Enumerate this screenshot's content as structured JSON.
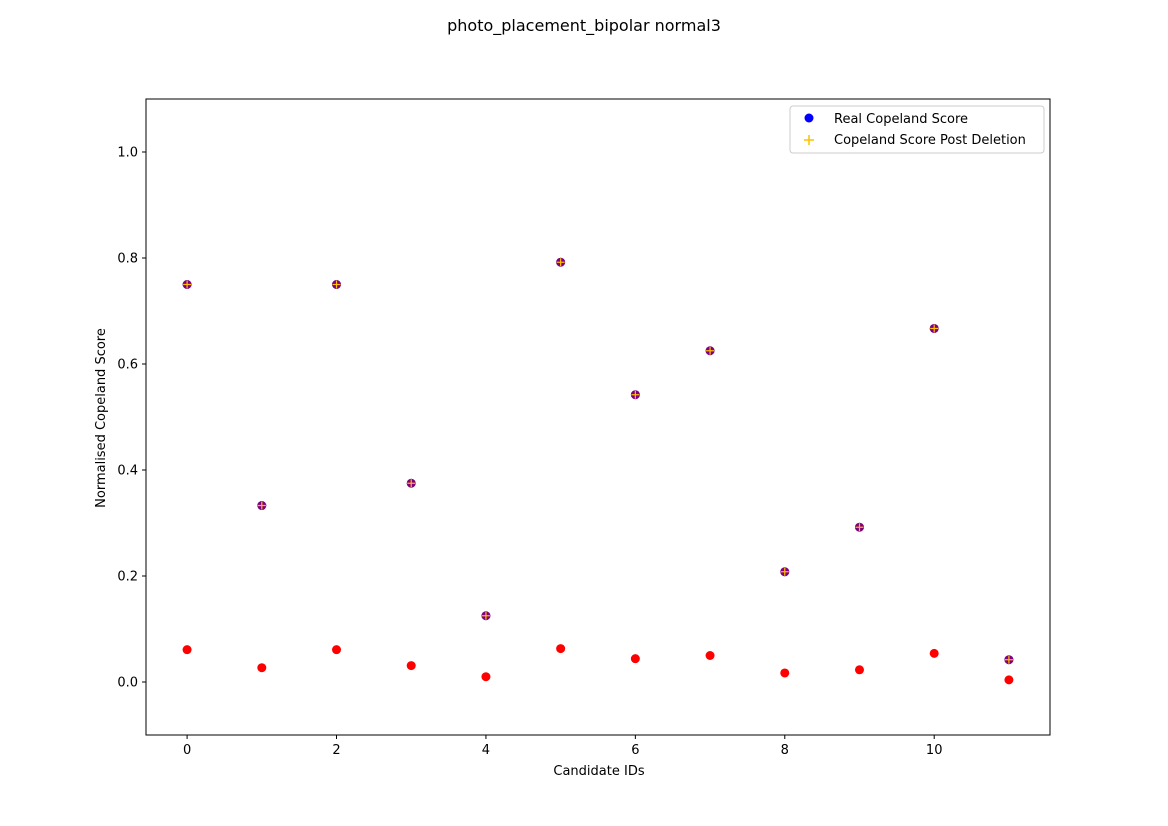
{
  "chart_data": {
    "type": "scatter",
    "title": "photo_placement_bipolar normal3",
    "xlabel": "Candidate IDs",
    "ylabel": "Normalised Copeland Score",
    "xlim": [
      -0.55,
      11.55
    ],
    "ylim": [
      -0.1,
      1.1
    ],
    "xticks": [
      "0",
      "2",
      "4",
      "6",
      "8",
      "10"
    ],
    "yticks": [
      "0.0",
      "0.2",
      "0.4",
      "0.6",
      "0.8",
      "1.0"
    ],
    "grid": false,
    "legend_position": "top-right",
    "x": [
      0,
      1,
      2,
      3,
      4,
      5,
      6,
      7,
      8,
      9,
      10,
      11
    ],
    "series": [
      {
        "name": "Real Copeland Score",
        "marker": "circle",
        "color": "#0000ff",
        "values": [
          0.75,
          0.333,
          0.75,
          0.375,
          0.125,
          0.792,
          0.542,
          0.625,
          0.208,
          0.292,
          0.667,
          0.042
        ]
      },
      {
        "name": "Copeland Score Post Deletion",
        "marker": "plus",
        "color": "#ffbf00",
        "values": [
          0.75,
          0.333,
          0.75,
          0.375,
          0.125,
          0.792,
          0.542,
          0.625,
          0.208,
          0.292,
          0.667,
          0.042
        ]
      }
    ],
    "extra_series": [
      {
        "marker": "circle",
        "color": "#ff0000",
        "values": [
          0.061,
          0.027,
          0.061,
          0.031,
          0.01,
          0.063,
          0.044,
          0.05,
          0.017,
          0.023,
          0.054,
          0.004
        ]
      }
    ]
  }
}
